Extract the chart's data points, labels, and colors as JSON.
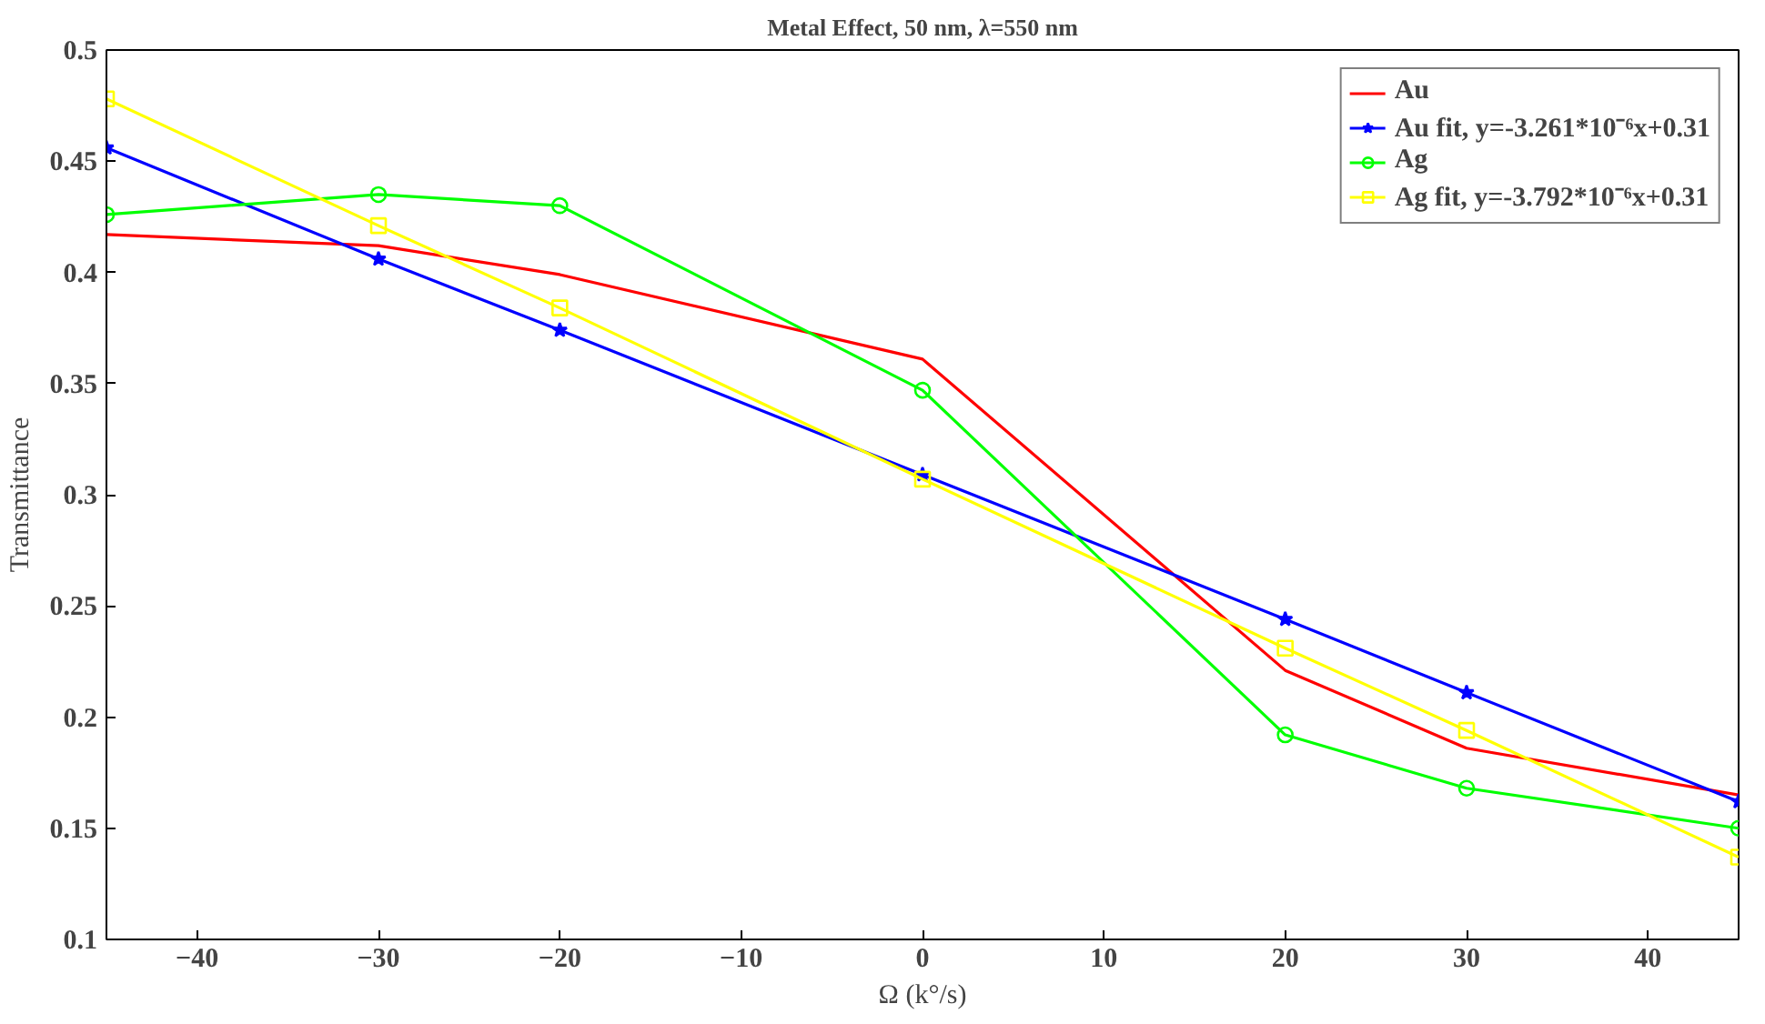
{
  "chart_data": {
    "type": "line",
    "title": "Metal Effect, 50 nm, λ=550 nm",
    "xlabel": "Ω (k°/s)",
    "ylabel": "Transmittance",
    "x": [
      -45,
      -30,
      -20,
      0,
      20,
      30,
      45
    ],
    "xlim": [
      -45,
      45
    ],
    "xticks": [
      -40,
      -30,
      -20,
      -10,
      0,
      10,
      20,
      30,
      40
    ],
    "ylim": [
      0.1,
      0.5
    ],
    "yticks": [
      0.1,
      0.15,
      0.2,
      0.25,
      0.3,
      0.35,
      0.4,
      0.45,
      0.5
    ],
    "grid": false,
    "legend": "top right",
    "line_style": "solid",
    "series": [
      {
        "name": "Au",
        "color": "#ff0000",
        "marker": "none",
        "values": [
          0.417,
          0.412,
          0.399,
          0.361,
          0.221,
          0.186,
          0.165
        ]
      },
      {
        "name": "Au fit, y=-3.261*10⁻⁶x+0.31",
        "color": "#0000ff",
        "marker": "star",
        "values": [
          0.456,
          0.406,
          0.374,
          0.309,
          0.244,
          0.211,
          0.162
        ]
      },
      {
        "name": "Ag",
        "color": "#00ff00",
        "marker": "circle",
        "values": [
          0.426,
          0.435,
          0.43,
          0.347,
          0.192,
          0.168,
          0.15
        ]
      },
      {
        "name": "Ag fit, y=-3.792*10⁻⁶x+0.31",
        "color": "#ffff00",
        "marker": "square",
        "values": [
          0.478,
          0.421,
          0.384,
          0.307,
          0.231,
          0.194,
          0.137
        ]
      }
    ]
  }
}
